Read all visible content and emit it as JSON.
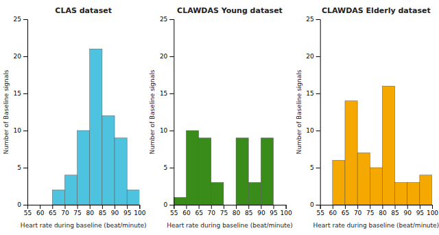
{
  "chart_data": [
    {
      "type": "histogram",
      "title": "CLAS dataset",
      "xlabel": "Heart rate during baseline (beat/minute)",
      "ylabel": "Number of Baseline signals",
      "bins": [
        55,
        60,
        65,
        70,
        75,
        80,
        85,
        90,
        95,
        100
      ],
      "values": [
        0,
        0,
        2,
        4,
        10,
        21,
        12,
        9,
        2
      ],
      "color": "#4DC3E0",
      "xlim": [
        55,
        100
      ],
      "xticks": [
        55,
        60,
        65,
        70,
        75,
        80,
        85,
        90,
        95,
        100
      ],
      "ylim": [
        0,
        25
      ],
      "yticks": [
        0,
        5,
        10,
        15,
        20,
        25
      ],
      "grid": false
    },
    {
      "type": "histogram",
      "title": "CLAWDAS Young dataset",
      "xlabel": "Heart rate during baseline (beat/minute)",
      "ylabel": "Number of Baseline signals",
      "bins": [
        55,
        60,
        65,
        70,
        75,
        80,
        85,
        90,
        95,
        100
      ],
      "values": [
        1,
        10,
        9,
        3,
        0,
        9,
        3,
        9,
        0
      ],
      "color": "#3a8c1a",
      "xlim": [
        55,
        100
      ],
      "xticks": [
        55,
        60,
        65,
        70,
        75,
        80,
        85,
        90,
        95,
        100
      ],
      "ylim": [
        0,
        25
      ],
      "yticks": [
        0,
        5,
        10,
        15,
        20,
        25
      ],
      "grid": false
    },
    {
      "type": "histogram",
      "title": "CLAWDAS Elderly dataset",
      "xlabel": "Heart rate during baseline (beat/minute)",
      "ylabel": "Number of Baseline signals",
      "bins": [
        55,
        60,
        65,
        70,
        75,
        80,
        85,
        90,
        95,
        100
      ],
      "values": [
        0,
        6,
        14,
        7,
        5,
        16,
        3,
        3,
        4
      ],
      "color": "#F5A800",
      "xlim": [
        55,
        100
      ],
      "xticks": [
        55,
        60,
        65,
        70,
        75,
        80,
        85,
        90,
        95,
        100
      ],
      "ylim": [
        0,
        25
      ],
      "yticks": [
        0,
        5,
        10,
        15,
        20,
        25
      ],
      "grid": false
    }
  ]
}
